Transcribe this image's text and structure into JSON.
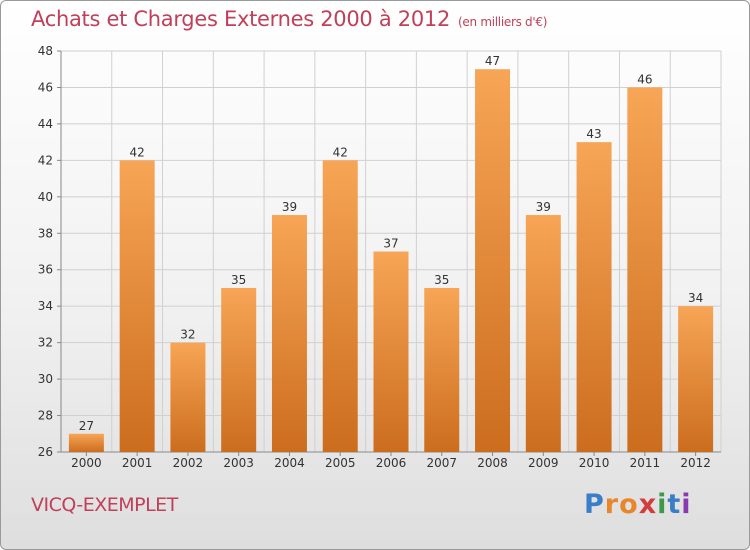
{
  "header": {
    "title": "Achats et Charges Externes 2000 à 2012",
    "subtitle": "(en milliers d'€)"
  },
  "footer": {
    "commune": "VICQ-EXEMPLET",
    "logo_text": "Proxiti",
    "logo_letters": [
      "P",
      "r",
      "o",
      "x",
      "i",
      "t",
      "i"
    ],
    "logo_colors": [
      "#3a7ec8",
      "#e8862a",
      "#e8862a",
      "#d23c3c",
      "#3a9a4a",
      "#3a7ec8",
      "#8a3ab0"
    ]
  },
  "colors": {
    "accent": "#c0405a",
    "bar_light": "#f7a556",
    "bar_dark": "#cc6d1e",
    "grid": "#d0d0d0",
    "axis": "#888888"
  },
  "chart_data": {
    "type": "bar",
    "title": "Achats et Charges Externes 2000 à 2012",
    "subtitle": "(en milliers d'€)",
    "xlabel": "",
    "ylabel": "",
    "categories": [
      "2000",
      "2001",
      "2002",
      "2003",
      "2004",
      "2005",
      "2006",
      "2007",
      "2008",
      "2009",
      "2010",
      "2011",
      "2012"
    ],
    "values": [
      27,
      42,
      32,
      35,
      39,
      42,
      37,
      35,
      47,
      39,
      43,
      46,
      34
    ],
    "ylim": [
      26,
      48
    ],
    "yticks": [
      26,
      28,
      30,
      32,
      34,
      36,
      38,
      40,
      42,
      44,
      46,
      48
    ],
    "grid": true,
    "legend": "none"
  }
}
